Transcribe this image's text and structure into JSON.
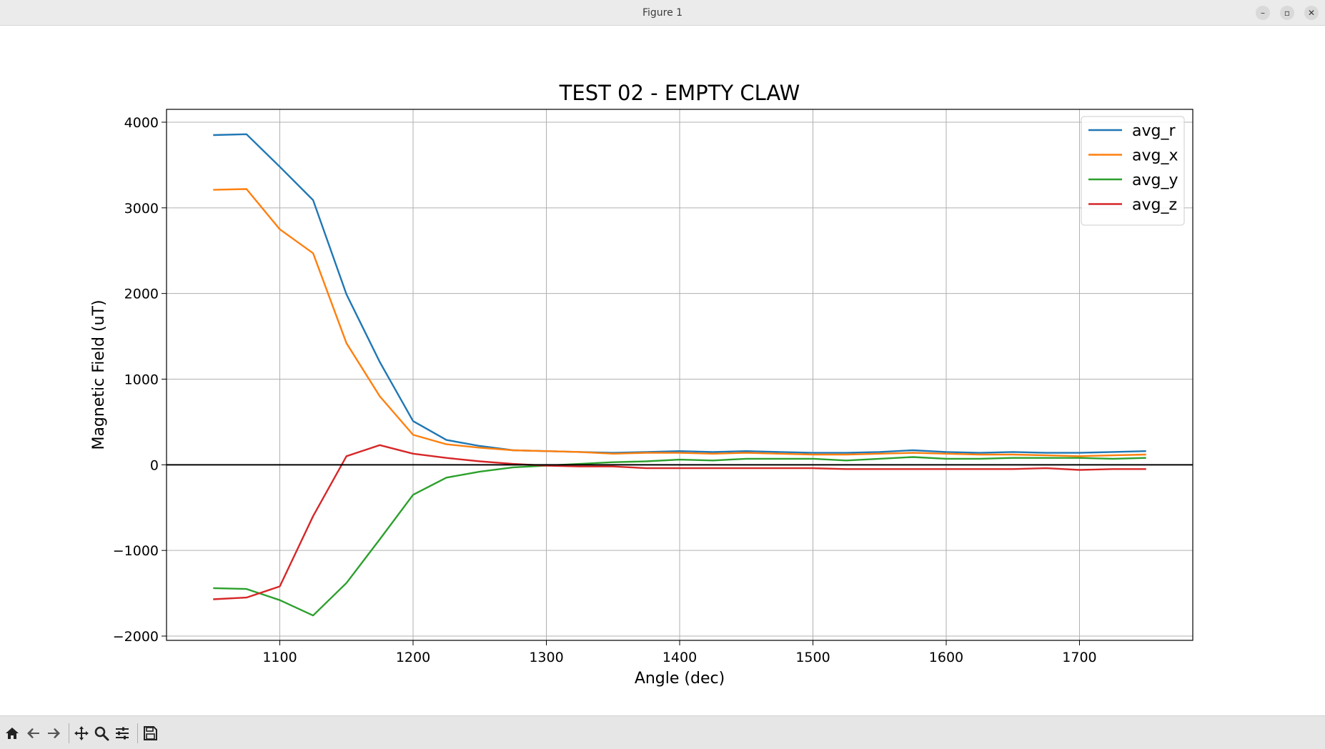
{
  "window": {
    "title": "Figure 1",
    "controls": [
      "minimize-icon",
      "restore-icon",
      "close-icon"
    ]
  },
  "toolbar": {
    "tools": [
      "home-icon",
      "back-arrow-icon",
      "forward-arrow-icon",
      "pan-move-icon",
      "zoom-magnifier-icon",
      "configure-subplots-icon",
      "save-floppy-icon"
    ]
  },
  "chart_data": {
    "type": "line",
    "title": "TEST 02 - EMPTY CLAW",
    "xlabel": "Angle (dec)",
    "ylabel": "Magnetic Field (uT)",
    "xlim": [
      1015,
      1785
    ],
    "ylim": [
      -2050,
      4150
    ],
    "xticks": [
      1100,
      1200,
      1300,
      1400,
      1500,
      1600,
      1700
    ],
    "yticks": [
      -2000,
      -1000,
      0,
      1000,
      2000,
      3000,
      4000
    ],
    "ytick_labels": [
      "−2000",
      "−1000",
      "0",
      "1000",
      "2000",
      "3000",
      "4000"
    ],
    "grid": true,
    "legend_position": "top-right",
    "zero_line": true,
    "x": [
      1050,
      1075,
      1100,
      1125,
      1150,
      1175,
      1200,
      1225,
      1250,
      1275,
      1300,
      1325,
      1350,
      1375,
      1400,
      1425,
      1450,
      1475,
      1500,
      1525,
      1550,
      1575,
      1600,
      1625,
      1650,
      1675,
      1700,
      1725,
      1750
    ],
    "series": [
      {
        "name": "avg_r",
        "color": "#1f77b4",
        "values": [
          3850,
          3860,
          3480,
          3090,
          1990,
          1200,
          510,
          290,
          220,
          170,
          160,
          150,
          140,
          150,
          160,
          150,
          160,
          150,
          140,
          140,
          150,
          170,
          150,
          140,
          150,
          140,
          140,
          150,
          160
        ]
      },
      {
        "name": "avg_x",
        "color": "#ff7f0e",
        "values": [
          3210,
          3220,
          2750,
          2470,
          1420,
          800,
          350,
          240,
          200,
          170,
          160,
          150,
          130,
          140,
          140,
          130,
          140,
          130,
          120,
          120,
          130,
          140,
          130,
          120,
          120,
          110,
          100,
          110,
          120
        ]
      },
      {
        "name": "avg_y",
        "color": "#2ca02c",
        "values": [
          -1440,
          -1450,
          -1580,
          -1760,
          -1380,
          -870,
          -350,
          -150,
          -80,
          -30,
          -10,
          10,
          30,
          40,
          60,
          50,
          70,
          70,
          70,
          50,
          70,
          90,
          70,
          70,
          80,
          80,
          80,
          70,
          80
        ]
      },
      {
        "name": "avg_z",
        "color": "#d62728",
        "values": [
          -1570,
          -1550,
          -1420,
          -600,
          100,
          230,
          130,
          80,
          40,
          10,
          -10,
          -20,
          -20,
          -40,
          -40,
          -40,
          -40,
          -40,
          -40,
          -50,
          -50,
          -50,
          -50,
          -50,
          -50,
          -40,
          -60,
          -50,
          -50
        ]
      }
    ]
  }
}
